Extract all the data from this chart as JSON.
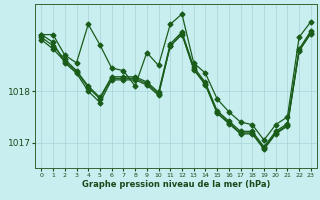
{
  "xlabel": "Graphe pression niveau de la mer (hPa)",
  "bg_color": "#c8eef0",
  "line_color": "#1a5c1a",
  "grid_color": "#a8d4d8",
  "axis_color": "#336633",
  "text_color": "#1a4a1a",
  "ylim": [
    1016.5,
    1019.7
  ],
  "yticks": [
    1017,
    1018
  ],
  "xlim": [
    -0.5,
    23.5
  ],
  "series": [
    [
      1019.1,
      1019.1,
      1018.7,
      1018.55,
      1019.3,
      1018.9,
      1018.45,
      1018.4,
      1018.1,
      1018.75,
      1018.5,
      1019.3,
      1019.5,
      1018.55,
      1018.35,
      1017.85,
      1017.6,
      1017.4,
      1017.35,
      1017.05,
      1017.35,
      1017.5,
      1019.05,
      1019.35
    ],
    [
      1019.1,
      1018.95,
      1018.55,
      1018.35,
      1018.0,
      1017.78,
      1018.22,
      1018.22,
      1018.22,
      1018.12,
      1017.92,
      1018.88,
      1019.1,
      1018.42,
      1018.12,
      1017.57,
      1017.37,
      1017.17,
      1017.17,
      1016.87,
      1017.17,
      1017.32,
      1018.78,
      1019.12
    ],
    [
      1019.05,
      1018.88,
      1018.62,
      1018.4,
      1018.1,
      1017.88,
      1018.28,
      1018.28,
      1018.28,
      1018.18,
      1017.98,
      1018.92,
      1019.15,
      1018.47,
      1018.17,
      1017.62,
      1017.42,
      1017.22,
      1017.22,
      1016.92,
      1017.22,
      1017.37,
      1018.82,
      1019.17
    ],
    [
      1019.0,
      1018.82,
      1018.58,
      1018.38,
      1018.07,
      1017.85,
      1018.25,
      1018.25,
      1018.25,
      1018.15,
      1017.95,
      1018.88,
      1019.12,
      1018.44,
      1018.14,
      1017.59,
      1017.39,
      1017.19,
      1017.19,
      1016.89,
      1017.19,
      1017.34,
      1018.79,
      1019.14
    ]
  ],
  "marker": "D",
  "marker_size": 2.5,
  "linewidth": 0.9
}
